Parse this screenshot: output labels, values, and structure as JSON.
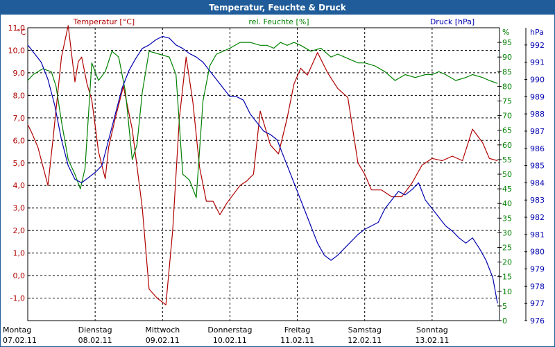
{
  "window": {
    "title": "Temperatur, Feuchte & Druck"
  },
  "colors": {
    "temperature": "#b00000",
    "humidity": "#008000",
    "pressure": "#0000b0",
    "title_bar": "#1f5c99",
    "grid": "#000000"
  },
  "chart_data": {
    "type": "line",
    "title": "Temperatur, Feuchte & Druck",
    "grid": true,
    "x_ticks": [
      {
        "day": "Montag",
        "date": "07.02.11",
        "x": 0
      },
      {
        "day": "Dienstag",
        "date": "08.02.11",
        "x": 1
      },
      {
        "day": "Mittwoch",
        "date": "09.02.11",
        "x": 2
      },
      {
        "day": "Donnerstag",
        "date": "10.02.11",
        "x": 3
      },
      {
        "day": "Freitag",
        "date": "11.02.11",
        "x": 4
      },
      {
        "day": "Samstag",
        "date": "12.02.11",
        "x": 5
      },
      {
        "day": "Sonntag",
        "date": "13.02.11",
        "x": 6
      }
    ],
    "xlim": [
      0,
      7
    ],
    "axes": {
      "temperature": {
        "label": "Temperatur [°C]",
        "unit": "°C",
        "ylim": [
          -2,
          11
        ],
        "ticks": [
          "-1,0",
          "0,0",
          "1,0",
          "2,0",
          "3,0",
          "4,0",
          "5,0",
          "6,0",
          "7,0",
          "8,0",
          "9,0",
          "10,0",
          "11,0"
        ],
        "tick_values": [
          -1,
          0,
          1,
          2,
          3,
          4,
          5,
          6,
          7,
          8,
          9,
          10,
          11
        ]
      },
      "humidity": {
        "label": "rel. Feuchte [%]",
        "unit": "%",
        "ylim": [
          0,
          100
        ],
        "ticks": [
          "0",
          "5",
          "10",
          "15",
          "20",
          "25",
          "30",
          "35",
          "40",
          "45",
          "50",
          "55",
          "60",
          "65",
          "70",
          "75",
          "80",
          "85",
          "90",
          "95"
        ],
        "tick_values": [
          0,
          5,
          10,
          15,
          20,
          25,
          30,
          35,
          40,
          45,
          50,
          55,
          60,
          65,
          70,
          75,
          80,
          85,
          90,
          95
        ]
      },
      "pressure": {
        "label": "Druck [hPa]",
        "unit": "hPa",
        "ylim": [
          976,
          993
        ],
        "ticks": [
          "976",
          "977",
          "978",
          "979",
          "980",
          "981",
          "982",
          "983",
          "984",
          "985",
          "986",
          "987",
          "988",
          "989",
          "990",
          "991",
          "992"
        ],
        "tick_values": [
          976,
          977,
          978,
          979,
          980,
          981,
          982,
          983,
          984,
          985,
          986,
          987,
          988,
          989,
          990,
          991,
          992
        ]
      }
    },
    "series": [
      {
        "name": "Temperatur [°C]",
        "axis": "temperature",
        "color": "#b00000",
        "x": [
          0,
          0.05,
          0.15,
          0.3,
          0.38,
          0.5,
          0.6,
          0.7,
          0.75,
          0.8,
          0.88,
          0.95,
          1.05,
          1.15,
          1.2,
          1.3,
          1.42,
          1.55,
          1.7,
          1.8,
          1.92,
          2.05,
          2.15,
          2.25,
          2.35,
          2.45,
          2.55,
          2.65,
          2.75,
          2.85,
          2.95,
          3.05,
          3.15,
          3.25,
          3.35,
          3.45,
          3.6,
          3.72,
          3.85,
          3.95,
          4.05,
          4.15,
          4.3,
          4.45,
          4.6,
          4.75,
          4.9,
          5.0,
          5.1,
          5.25,
          5.4,
          5.55,
          5.7,
          5.85,
          6.0,
          6.15,
          6.3,
          6.45,
          6.6,
          6.75,
          6.85,
          6.97
        ],
        "values": [
          6.7,
          6.4,
          5.7,
          4.0,
          6.2,
          9.7,
          11.1,
          8.6,
          9.5,
          9.7,
          8.5,
          7.8,
          5.5,
          4.3,
          5.7,
          7.0,
          8.4,
          6.5,
          3.0,
          -0.6,
          -1.0,
          -1.3,
          2.0,
          7.0,
          9.7,
          7.7,
          4.8,
          3.3,
          3.3,
          2.7,
          3.2,
          3.6,
          4.0,
          4.2,
          4.5,
          7.3,
          5.8,
          5.4,
          7.0,
          8.5,
          9.2,
          8.9,
          9.9,
          9.0,
          8.3,
          7.9,
          5.0,
          4.5,
          3.8,
          3.8,
          3.5,
          3.5,
          4.1,
          4.9,
          5.2,
          5.1,
          5.3,
          5.1,
          6.5,
          5.9,
          5.2,
          5.1
        ]
      },
      {
        "name": "rel. Feuchte [%]",
        "axis": "humidity",
        "color": "#008000",
        "x": [
          0,
          0.08,
          0.22,
          0.35,
          0.42,
          0.5,
          0.6,
          0.7,
          0.78,
          0.85,
          0.95,
          1.05,
          1.15,
          1.25,
          1.35,
          1.45,
          1.55,
          1.62,
          1.7,
          1.8,
          1.95,
          2.1,
          2.2,
          2.3,
          2.4,
          2.5,
          2.6,
          2.7,
          2.8,
          2.9,
          3.0,
          3.15,
          3.3,
          3.45,
          3.55,
          3.65,
          3.75,
          3.85,
          3.95,
          4.05,
          4.2,
          4.35,
          4.5,
          4.6,
          4.7,
          4.8,
          4.9,
          5.0,
          5.15,
          5.3,
          5.45,
          5.6,
          5.75,
          5.9,
          6.0,
          6.1,
          6.2,
          6.35,
          6.5,
          6.6,
          6.75,
          6.85,
          6.97
        ],
        "values": [
          82,
          84,
          86,
          85,
          80,
          68,
          55,
          50,
          45,
          52,
          88,
          82,
          85,
          92,
          90,
          78,
          55,
          60,
          78,
          92,
          91,
          90,
          84,
          50,
          48,
          42,
          75,
          87,
          91,
          92,
          93,
          95,
          95,
          94,
          94,
          93,
          95,
          94,
          95,
          94,
          92,
          93,
          90,
          91,
          90,
          89,
          88,
          88,
          87,
          85,
          82,
          84,
          83,
          84,
          84,
          85,
          84,
          82,
          83,
          84,
          83,
          82,
          81
        ]
      },
      {
        "name": "Druck [hPa]",
        "axis": "pressure",
        "color": "#0000b0",
        "x": [
          0,
          0.1,
          0.2,
          0.3,
          0.4,
          0.5,
          0.6,
          0.7,
          0.8,
          0.9,
          1.0,
          1.1,
          1.2,
          1.3,
          1.4,
          1.5,
          1.6,
          1.7,
          1.8,
          1.9,
          2.0,
          2.1,
          2.2,
          2.3,
          2.4,
          2.5,
          2.6,
          2.7,
          2.8,
          2.9,
          3.0,
          3.1,
          3.2,
          3.3,
          3.4,
          3.5,
          3.6,
          3.7,
          3.8,
          3.9,
          4.0,
          4.1,
          4.2,
          4.3,
          4.4,
          4.5,
          4.6,
          4.7,
          4.8,
          4.9,
          5.0,
          5.1,
          5.2,
          5.3,
          5.4,
          5.5,
          5.6,
          5.7,
          5.8,
          5.9,
          6.0,
          6.1,
          6.2,
          6.3,
          6.4,
          6.5,
          6.6,
          6.7,
          6.8,
          6.9,
          6.97
        ],
        "values": [
          992.0,
          991.5,
          991.0,
          990.0,
          988.5,
          986.5,
          985.0,
          984.2,
          984.0,
          984.3,
          984.6,
          985.0,
          986.5,
          988.0,
          989.5,
          990.5,
          991.2,
          991.8,
          992.0,
          992.3,
          992.5,
          992.4,
          992.0,
          991.8,
          991.5,
          991.3,
          991.0,
          990.5,
          990.0,
          989.5,
          989.0,
          989.0,
          988.8,
          988.0,
          987.5,
          987.0,
          986.8,
          986.5,
          985.5,
          984.5,
          983.5,
          982.5,
          981.5,
          980.5,
          979.8,
          979.5,
          979.8,
          980.2,
          980.6,
          981.0,
          981.3,
          981.5,
          981.7,
          982.5,
          983.0,
          983.5,
          983.3,
          983.6,
          984.0,
          983.0,
          982.5,
          982.0,
          981.5,
          981.2,
          980.8,
          980.5,
          980.8,
          980.2,
          979.5,
          978.5,
          977.0
        ]
      }
    ]
  }
}
